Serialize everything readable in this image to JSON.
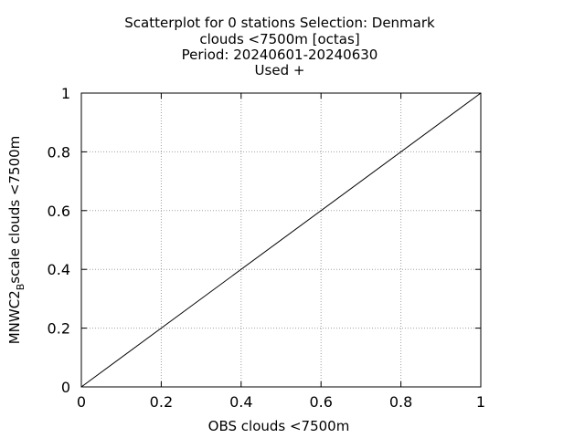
{
  "chart_data": {
    "type": "scatter",
    "title_lines": [
      "Scatterplot for    0 stations Selection: Denmark",
      "clouds <7500m [octas]",
      "Period: 20240601-20240630",
      "Used  +"
    ],
    "xlabel": "OBS clouds <7500m",
    "ylabel": {
      "main": "MNWC2",
      "subscript": "B",
      "rest": "scale clouds <7500m"
    },
    "xlim": [
      0,
      1
    ],
    "ylim": [
      0,
      1
    ],
    "x_ticks": [
      0,
      0.2,
      0.4,
      0.6,
      0.8,
      1
    ],
    "x_tick_labels": [
      "0",
      "0.2",
      "0.4",
      "0.6",
      "0.8",
      "1"
    ],
    "y_ticks": [
      0,
      0.2,
      0.4,
      0.6,
      0.8,
      1
    ],
    "y_tick_labels": [
      "0",
      "0.2",
      "0.4",
      "0.6",
      "0.8",
      "1"
    ],
    "grid": true,
    "points": [],
    "reference_line": {
      "x": [
        0,
        1
      ],
      "y": [
        0,
        1
      ]
    }
  }
}
